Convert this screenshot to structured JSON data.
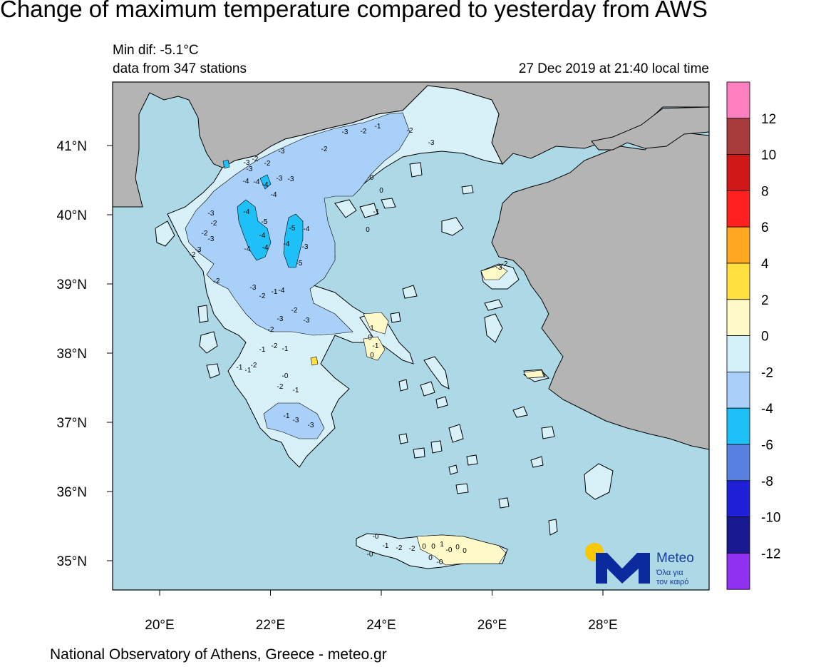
{
  "title": "Change of maximum temperature compared to yesterday from AWS",
  "info": {
    "min_dif_prefix": "Min dif: -5.1",
    "min_dif_unit": "°C",
    "stations": "data from 347 stations",
    "timestamp": "27 Dec 2019 at 21:40 local time"
  },
  "axes": {
    "lat_labels": [
      "41°N",
      "40°N",
      "39°N",
      "38°N",
      "37°N",
      "36°N",
      "35°N"
    ],
    "lon_labels": [
      "20°E",
      "22°E",
      "24°E",
      "26°E",
      "28°E"
    ]
  },
  "colorbar": {
    "labels": [
      "12",
      "10",
      "8",
      "6",
      "4",
      "2",
      "0",
      "-2",
      "-4",
      "-6",
      "-8",
      "-10",
      "-12"
    ],
    "colors": [
      "#ff80c0",
      "#a83c3c",
      "#d01818",
      "#ff2020",
      "#ffa820",
      "#ffe040",
      "#fffac8",
      "#d4f0f8",
      "#a8d0f8",
      "#1ec0f8",
      "#5880e0",
      "#2020d8",
      "#181890",
      "#9030f0"
    ]
  },
  "colors": {
    "sea": "#add8e6",
    "foreign_land": "#b4b4b4",
    "greece_land": "#d8f0f8"
  },
  "station_values": [
    {
      "v": "-3"
    },
    {
      "v": "-2"
    },
    {
      "v": "-3"
    },
    {
      "v": "-2"
    },
    {
      "v": "-3"
    },
    {
      "v": "-4"
    },
    {
      "v": "-4"
    },
    {
      "v": "-4"
    },
    {
      "v": "-3"
    },
    {
      "v": "-4"
    },
    {
      "v": "-3"
    },
    {
      "v": "-2"
    },
    {
      "v": "-3"
    },
    {
      "v": "-2"
    },
    {
      "v": "-4"
    },
    {
      "v": "-5"
    },
    {
      "v": "-4"
    },
    {
      "v": "-4"
    },
    {
      "v": "-5"
    },
    {
      "v": "-4"
    },
    {
      "v": "-3"
    },
    {
      "v": "-4"
    },
    {
      "v": "-4"
    },
    {
      "v": "-5"
    },
    {
      "v": "-3"
    },
    {
      "v": "-2"
    },
    {
      "v": "-3"
    },
    {
      "v": "-2"
    },
    {
      "v": "-3"
    },
    {
      "v": "-2"
    },
    {
      "v": "-4"
    },
    {
      "v": "-3"
    },
    {
      "v": "-2"
    },
    {
      "v": "-1"
    },
    {
      "v": "-2"
    },
    {
      "v": "-3"
    },
    {
      "v": "-2"
    },
    {
      "v": "-3"
    },
    {
      "v": "-1"
    },
    {
      "v": "-2"
    },
    {
      "v": "-1"
    },
    {
      "v": "-1"
    },
    {
      "v": "-1"
    },
    {
      "v": "-2"
    },
    {
      "v": "-0"
    },
    {
      "v": "-2"
    },
    {
      "v": "-1"
    },
    {
      "v": "-3"
    },
    {
      "v": "-1"
    },
    {
      "v": "-3"
    },
    {
      "v": "-2"
    },
    {
      "v": "1"
    },
    {
      "v": "0"
    },
    {
      "v": "-1"
    },
    {
      "v": "0"
    },
    {
      "v": "0"
    },
    {
      "v": "0"
    },
    {
      "v": "-0"
    },
    {
      "v": "0"
    },
    {
      "v": "1"
    },
    {
      "v": "0"
    },
    {
      "v": "0"
    },
    {
      "v": "-0"
    },
    {
      "v": "-0"
    },
    {
      "v": "-1"
    },
    {
      "v": "-0"
    },
    {
      "v": "-2"
    },
    {
      "v": "-2"
    },
    {
      "v": "-3"
    },
    {
      "v": "-2"
    },
    {
      "v": "-1"
    },
    {
      "v": "-0"
    },
    {
      "v": "-1"
    },
    {
      "v": "0"
    },
    {
      "v": "0"
    },
    {
      "v": "-3"
    },
    {
      "v": "-2"
    }
  ],
  "logo": {
    "name": "Meteo",
    "tagline1": "Όλα για",
    "tagline2": "τον καιρό"
  },
  "footer": "National Observatory of Athens, Greece - meteo.gr"
}
